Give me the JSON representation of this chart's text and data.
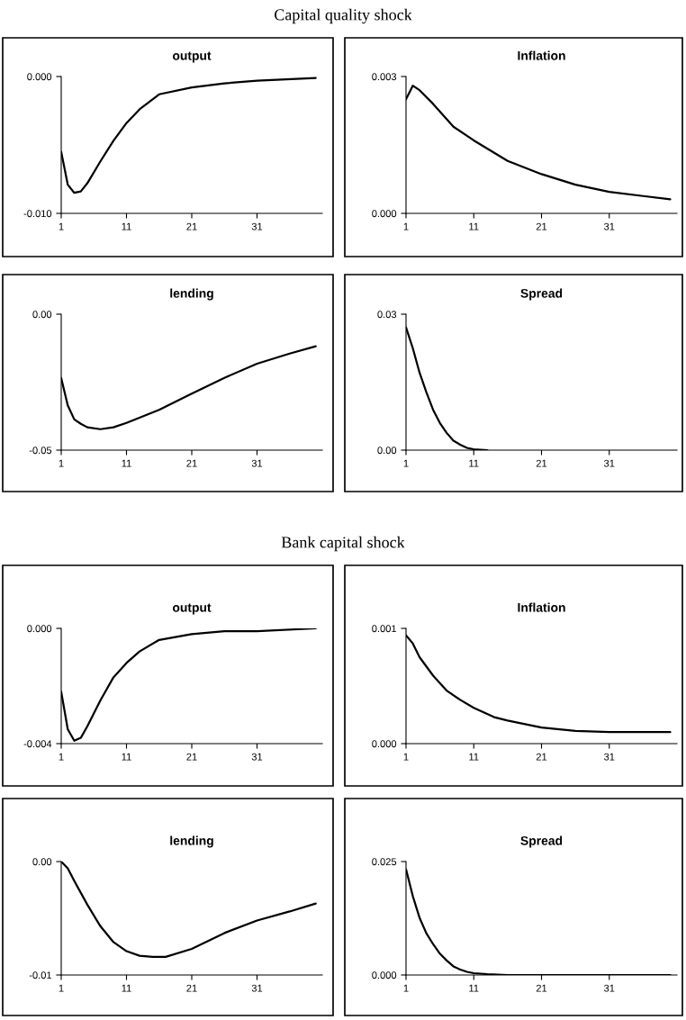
{
  "chart_data": [
    {
      "type": "line",
      "title": "output",
      "annotations": [
        "Capital quality shock"
      ],
      "color": "#000000",
      "x": [
        1,
        2,
        3,
        4,
        5,
        7,
        9,
        11,
        13,
        16,
        21,
        26,
        31,
        40
      ],
      "values": [
        -0.0055,
        -0.0079,
        -0.0085,
        -0.0084,
        -0.0078,
        -0.0062,
        -0.0047,
        -0.0034,
        -0.0024,
        -0.0013,
        -0.0008,
        -0.0005,
        -0.0003,
        -0.0001
      ],
      "xlim": [
        1,
        41
      ],
      "xticks": [
        1,
        11,
        21,
        31
      ],
      "ylim": [
        -0.01,
        0.0
      ],
      "yticks": [
        {
          "value": -0.01,
          "label": "-0.010"
        },
        {
          "value": 0,
          "label": "0.000"
        }
      ]
    },
    {
      "type": "line",
      "title": "Inflation",
      "color": "#000000",
      "x": [
        1,
        2,
        3,
        5,
        8,
        11,
        16,
        21,
        26,
        31,
        36,
        40
      ],
      "values": [
        0.0025,
        0.0028,
        0.0027,
        0.0024,
        0.0019,
        0.0016,
        0.00115,
        0.00086,
        0.00063,
        0.00047,
        0.00038,
        0.00031
      ],
      "xlim": [
        1,
        41
      ],
      "xticks": [
        1,
        11,
        21,
        31
      ],
      "ylim": [
        0,
        0.003
      ],
      "yticks": [
        {
          "value": 0,
          "label": "0.000"
        },
        0.003
      ]
    },
    {
      "type": "line",
      "title": "lending",
      "color": "#000000",
      "x": [
        1,
        2,
        3,
        4,
        5,
        7,
        9,
        11,
        16,
        21,
        26,
        31,
        36,
        40
      ],
      "values": [
        -0.0235,
        -0.0335,
        -0.0387,
        -0.0403,
        -0.0416,
        -0.0423,
        -0.0416,
        -0.04,
        -0.0352,
        -0.0292,
        -0.0234,
        -0.0182,
        -0.0145,
        -0.0118
      ],
      "xlim": [
        1,
        41
      ],
      "xticks": [
        1,
        11,
        21,
        31
      ],
      "ylim": [
        -0.05,
        0
      ],
      "yticks": [
        {
          "value": -0.05,
          "label": "-0.05"
        },
        {
          "value": 0,
          "label": "0.00"
        }
      ]
    },
    {
      "type": "line",
      "title": "Spread",
      "color": "#000000",
      "x": [
        1,
        2,
        3,
        4,
        5,
        6,
        7,
        8,
        9,
        10,
        11,
        12,
        13
      ],
      "values": [
        0.0271,
        0.0225,
        0.0171,
        0.0128,
        0.0089,
        0.006,
        0.0038,
        0.0021,
        0.0012,
        0.0005,
        0.0002,
        0.0001,
        0.0
      ],
      "xlim": [
        1,
        41
      ],
      "xticks": [
        1,
        11,
        21,
        31
      ],
      "ylim": [
        0,
        0.03
      ],
      "yticks": [
        {
          "value": 0,
          "label": "0.00"
        },
        {
          "value": 0.03,
          "label": "0.03"
        }
      ]
    },
    {
      "type": "line",
      "title": "output",
      "annotations": [
        "Bank capital shock"
      ],
      "color": "#000000",
      "x": [
        1,
        2,
        3,
        4,
        5,
        7,
        9,
        11,
        13,
        16,
        21,
        26,
        31,
        40
      ],
      "values": [
        -0.0022,
        -0.0035,
        -0.0039,
        -0.0038,
        -0.0034,
        -0.0025,
        -0.0017,
        -0.0012,
        -0.0008,
        -0.0004,
        -0.0002,
        -0.0001,
        -0.0001,
        0.0
      ],
      "xlim": [
        1,
        41
      ],
      "xticks": [
        1,
        11,
        21,
        31
      ],
      "ylim": [
        -0.004,
        0
      ],
      "yticks": [
        {
          "value": -0.004,
          "label": "-0.004"
        },
        {
          "value": 0,
          "label": "0.000"
        }
      ]
    },
    {
      "type": "line",
      "title": "Inflation",
      "color": "#000000",
      "x": [
        1,
        2,
        3,
        5,
        7,
        9,
        11,
        14,
        16,
        21,
        26,
        31,
        36,
        40
      ],
      "values": [
        0.00094,
        0.00087,
        0.00075,
        0.00059,
        0.00046,
        0.00038,
        0.00031,
        0.00023,
        0.0002,
        0.00014,
        0.00011,
        0.0001,
        0.0001,
        0.0001
      ],
      "xlim": [
        1,
        41
      ],
      "xticks": [
        1,
        11,
        21,
        31
      ],
      "ylim": [
        0,
        0.001
      ],
      "yticks": [
        {
          "value": 0,
          "label": "0.000"
        },
        0.001
      ]
    },
    {
      "type": "line",
      "title": "lending",
      "color": "#000000",
      "x": [
        1,
        2,
        3,
        5,
        7,
        9,
        11,
        13,
        15,
        17,
        21,
        26,
        31,
        36,
        40
      ],
      "values": [
        0.0,
        -0.0006,
        -0.0017,
        -0.0038,
        -0.0057,
        -0.0071,
        -0.0079,
        -0.0083,
        -0.0084,
        -0.0084,
        -0.0077,
        -0.0063,
        -0.0052,
        -0.0044,
        -0.0037
      ],
      "xlim": [
        1,
        41
      ],
      "xticks": [
        1,
        11,
        21,
        31
      ],
      "ylim": [
        -0.01,
        0
      ],
      "yticks": [
        {
          "value": -0.01,
          "label": "-0.01"
        },
        {
          "value": 0,
          "label": "0.00"
        }
      ]
    },
    {
      "type": "line",
      "title": "Spread",
      "color": "#000000",
      "x": [
        1,
        2,
        3,
        4,
        5,
        6,
        7,
        8,
        9,
        10,
        11,
        13,
        16,
        21,
        26,
        31,
        36,
        40
      ],
      "values": [
        0.0233,
        0.0174,
        0.0126,
        0.0092,
        0.0068,
        0.0047,
        0.0032,
        0.0019,
        0.0012,
        0.0007,
        0.0004,
        0.0002,
        0.0,
        0.0,
        0.0,
        0.0,
        0.0,
        0.0
      ],
      "xlim": [
        1,
        41
      ],
      "xticks": [
        1,
        11,
        21,
        31
      ],
      "ylim": [
        0,
        0.025
      ],
      "yticks": [
        {
          "value": 0,
          "label": "0.000"
        },
        {
          "value": 0.025,
          "label": "0.025"
        }
      ]
    }
  ]
}
